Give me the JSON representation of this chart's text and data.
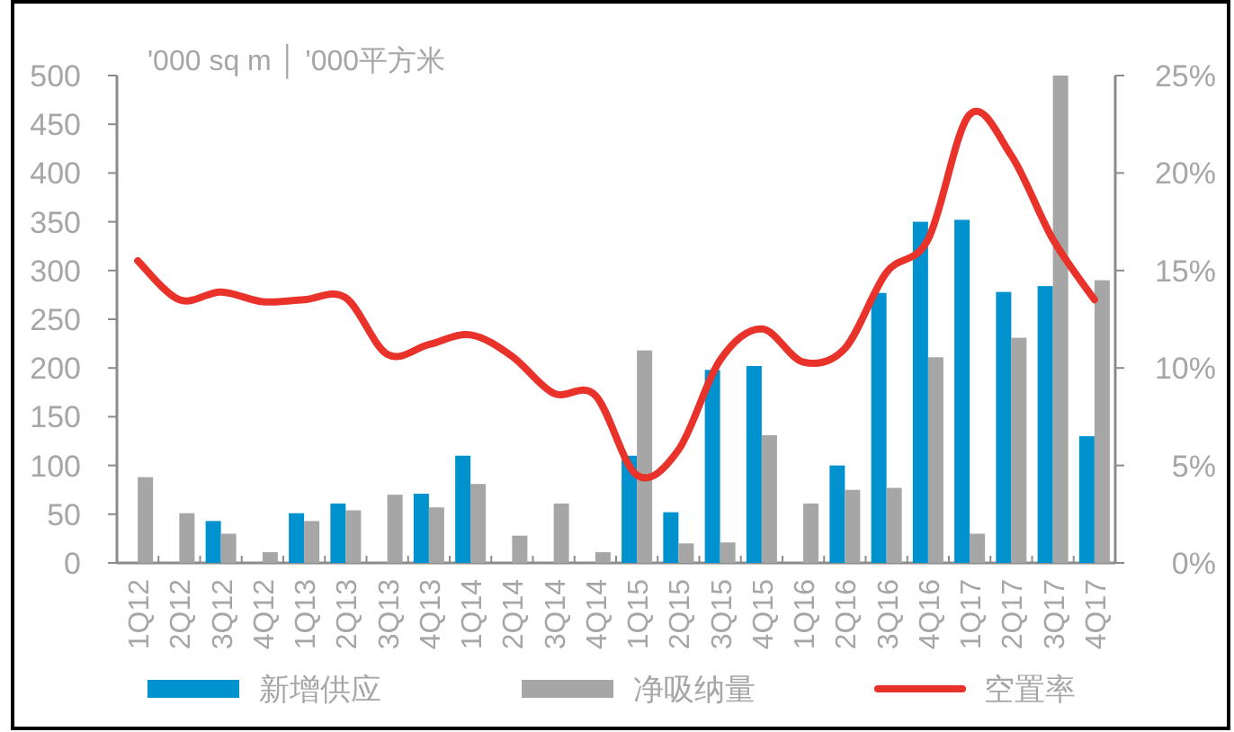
{
  "chart_data": {
    "type": "bar",
    "ylabel": "'000 sq m │ '000平方米",
    "categories": [
      "1Q12",
      "2Q12",
      "3Q12",
      "4Q12",
      "1Q13",
      "2Q13",
      "3Q13",
      "4Q13",
      "1Q14",
      "2Q14",
      "3Q14",
      "4Q14",
      "1Q15",
      "2Q15",
      "3Q15",
      "4Q15",
      "1Q16",
      "2Q16",
      "3Q16",
      "4Q16",
      "1Q17",
      "2Q17",
      "3Q17",
      "4Q17"
    ],
    "series": [
      {
        "name": "新增供应",
        "color": "#0091cf",
        "values": [
          null,
          null,
          43,
          null,
          51,
          61,
          null,
          71,
          110,
          null,
          null,
          null,
          110,
          52,
          198,
          202,
          null,
          100,
          277,
          350,
          352,
          278,
          284,
          130
        ]
      },
      {
        "name": "净吸纳量",
        "color": "#a6a6a6",
        "values": [
          88,
          51,
          30,
          11,
          43,
          54,
          70,
          57,
          81,
          28,
          61,
          11,
          218,
          20,
          21,
          131,
          61,
          75,
          77,
          211,
          30,
          231,
          500,
          290
        ]
      },
      {
        "name": "空置率",
        "type": "line",
        "axis": "y2",
        "color": "#e8322a",
        "values": [
          15.5,
          13.5,
          13.9,
          13.4,
          13.5,
          13.6,
          10.7,
          11.2,
          11.7,
          10.6,
          8.7,
          8.6,
          4.5,
          5.8,
          10.4,
          12.0,
          10.3,
          11.0,
          14.9,
          16.6,
          23.0,
          20.9,
          16.6,
          13.5
        ]
      }
    ],
    "ylim": [
      0,
      500
    ],
    "yticks": [
      0,
      50,
      100,
      150,
      200,
      250,
      300,
      350,
      400,
      450,
      500
    ],
    "y2lim": [
      0,
      25
    ],
    "y2ticks": [
      {
        "value": 0,
        "label": "0%"
      },
      {
        "value": 5,
        "label": "5%"
      },
      {
        "value": 10,
        "label": "10%"
      },
      {
        "value": 15,
        "label": "15%"
      },
      {
        "value": 20,
        "label": "20%"
      },
      {
        "value": 25,
        "label": "25%"
      }
    ],
    "legend": "bottom",
    "line_style": "solid",
    "marker": "none"
  }
}
